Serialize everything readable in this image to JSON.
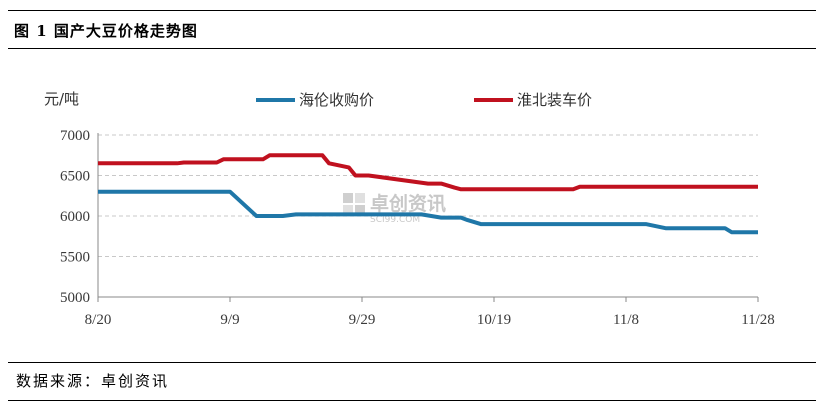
{
  "figure_title": "图 1  国产大豆价格走势图",
  "source_text": "数据来源：卓创资讯",
  "watermark": {
    "text": "卓创资讯",
    "subtext": "SCI99.COM"
  },
  "chart_data": {
    "type": "line",
    "title": "",
    "ylabel": "元/吨",
    "xlabel": "",
    "ylim": [
      5000,
      7000
    ],
    "yticks": [
      5000,
      5500,
      6000,
      6500,
      7000
    ],
    "xlim": [
      "8/20",
      "11/28"
    ],
    "xticks": [
      "8/20",
      "9/9",
      "9/29",
      "10/19",
      "11/8",
      "11/28"
    ],
    "grid": "horizontal dashed",
    "legend": "top",
    "series": [
      {
        "name": "海伦收购价",
        "color": "#1f77a8",
        "points": [
          [
            "8/20",
            6300
          ],
          [
            "9/9",
            6300
          ],
          [
            "9/13",
            6000
          ],
          [
            "9/17",
            6000
          ],
          [
            "9/19",
            6020
          ],
          [
            "10/8",
            6020
          ],
          [
            "10/11",
            5980
          ],
          [
            "10/14",
            5980
          ],
          [
            "10/15",
            5950
          ],
          [
            "10/17",
            5900
          ],
          [
            "11/11",
            5900
          ],
          [
            "11/14",
            5850
          ],
          [
            "11/23",
            5850
          ],
          [
            "11/24",
            5800
          ],
          [
            "11/28",
            5800
          ]
        ]
      },
      {
        "name": "淮北装车价",
        "color": "#c0111f",
        "points": [
          [
            "8/20",
            6650
          ],
          [
            "9/1",
            6650
          ],
          [
            "9/2",
            6660
          ],
          [
            "9/7",
            6660
          ],
          [
            "9/8",
            6700
          ],
          [
            "9/14",
            6700
          ],
          [
            "9/15",
            6750
          ],
          [
            "9/23",
            6750
          ],
          [
            "9/24",
            6650
          ],
          [
            "9/27",
            6600
          ],
          [
            "9/28",
            6500
          ],
          [
            "9/30",
            6500
          ],
          [
            "10/9",
            6400
          ],
          [
            "10/11",
            6400
          ],
          [
            "10/13",
            6350
          ],
          [
            "10/14",
            6330
          ],
          [
            "10/31",
            6330
          ],
          [
            "11/1",
            6360
          ],
          [
            "11/28",
            6360
          ]
        ]
      }
    ]
  }
}
